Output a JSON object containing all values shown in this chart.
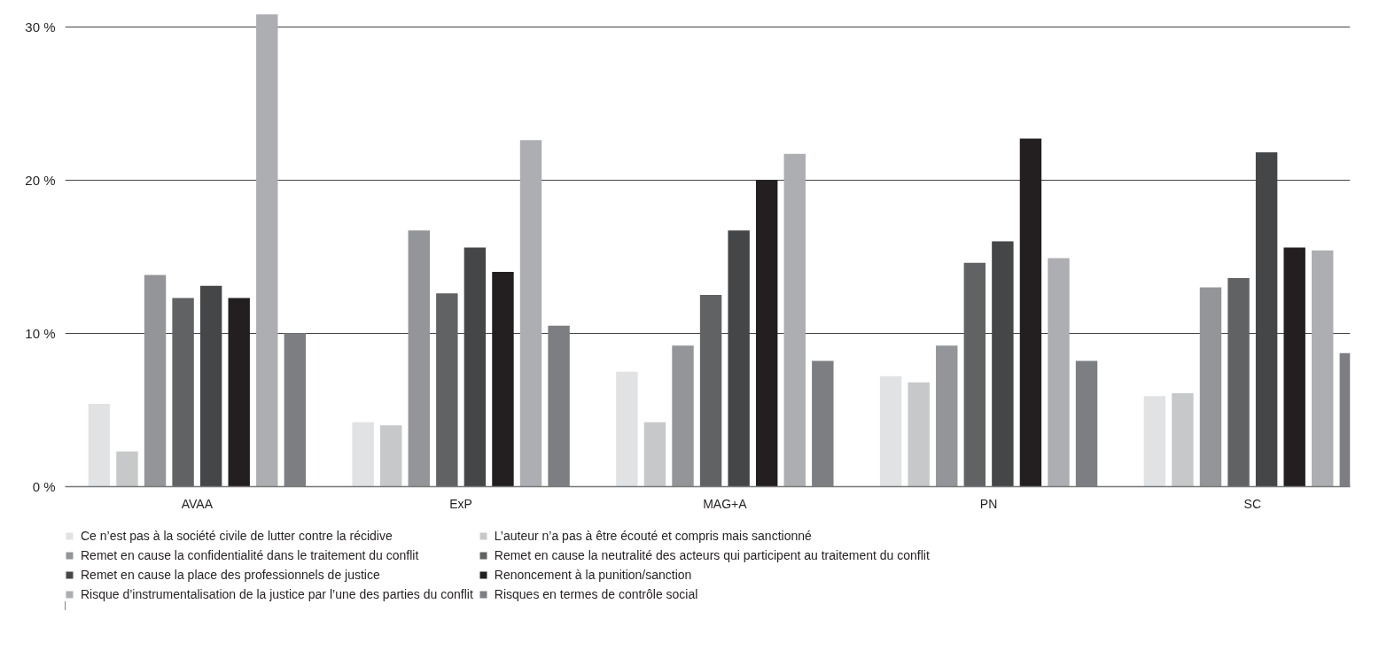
{
  "chart_data": {
    "type": "bar",
    "categories": [
      "AVAA",
      "ExP",
      "MAG+A",
      "PN",
      "SC"
    ],
    "series": [
      {
        "name": "Ce n’est pas à la société civile de lutter contre la récidive",
        "color": "#e1e2e3",
        "values": [
          5.4,
          4.2,
          7.5,
          7.2,
          5.9
        ]
      },
      {
        "name": "L’auteur n’a pas à être écouté et compris mais sanctionné",
        "color": "#c7c8c9",
        "values": [
          2.3,
          4.0,
          4.2,
          6.8,
          6.1
        ]
      },
      {
        "name": "Remet en cause la confidentialité dans le traitement du conflit",
        "color": "#939598",
        "values": [
          13.8,
          16.7,
          9.2,
          9.2,
          13.0
        ]
      },
      {
        "name": "Remet en cause la neutralité des acteurs qui participent au traitement du conflit",
        "color": "#616264",
        "values": [
          12.3,
          12.6,
          12.5,
          14.6,
          13.6
        ]
      },
      {
        "name": "Remet en cause la place des professionnels de justice",
        "color": "#454648",
        "values": [
          13.1,
          15.6,
          16.7,
          16.0,
          21.8
        ]
      },
      {
        "name": "Renoncement à la punition/sanction",
        "color": "#231f20",
        "values": [
          12.3,
          14.0,
          20.0,
          22.7,
          15.6
        ]
      },
      {
        "name": "Risque d’instrumentalisation de la justice par l’une des parties du conflit",
        "color": "#adaeb1",
        "values": [
          30.8,
          22.6,
          21.7,
          14.9,
          15.4
        ]
      },
      {
        "name": "Risques en termes de contrôle social",
        "color": "#7d7e82",
        "values": [
          10.0,
          10.5,
          8.2,
          8.2,
          8.7
        ]
      }
    ],
    "ylim": [
      0,
      30.9
    ],
    "yticks": [
      {
        "value": 0,
        "label": "0 %"
      },
      {
        "value": 10,
        "label": "10 %"
      },
      {
        "value": 20,
        "label": "20 %"
      },
      {
        "value": 30,
        "label": "30 %"
      }
    ],
    "grid": "y",
    "legend": "bottom"
  }
}
